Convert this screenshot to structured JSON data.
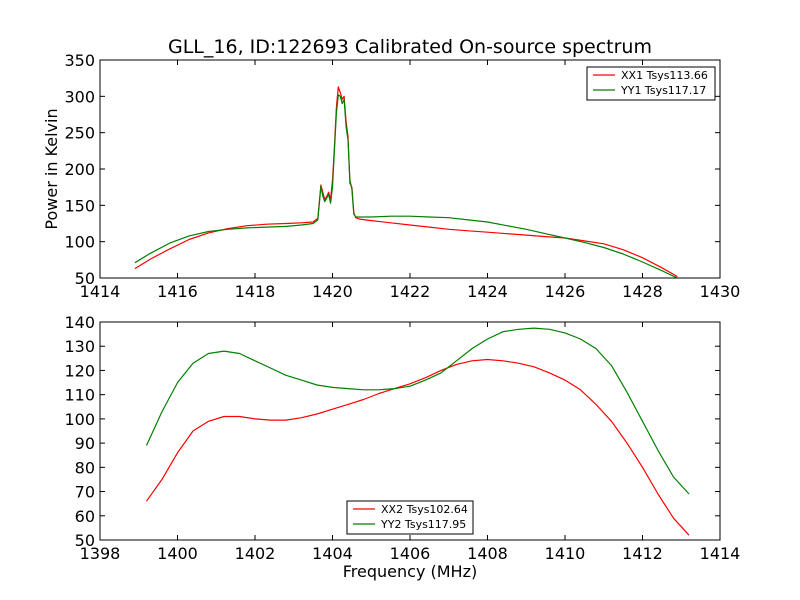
{
  "title": "GLL_16, ID:122693 Calibrated On-source spectrum",
  "chart_data": [
    {
      "type": "line",
      "ylabel": "Power in Kelvin",
      "xlabel": "",
      "xlim": [
        1414,
        1430
      ],
      "ylim": [
        50,
        350
      ],
      "xticks": [
        1414,
        1416,
        1418,
        1420,
        1422,
        1424,
        1426,
        1428,
        1430
      ],
      "yticks": [
        50,
        100,
        150,
        200,
        250,
        300,
        350
      ],
      "grid": false,
      "legend_position": "top-right",
      "series": [
        {
          "name": "XX1 Tsys113.66",
          "color": "#ff0000",
          "x": [
            1414.9,
            1415.3,
            1415.8,
            1416.3,
            1416.8,
            1417.3,
            1417.8,
            1418.3,
            1418.8,
            1419.2,
            1419.5,
            1419.62,
            1419.7,
            1419.75,
            1419.8,
            1419.85,
            1419.9,
            1419.95,
            1420.0,
            1420.05,
            1420.1,
            1420.15,
            1420.2,
            1420.25,
            1420.3,
            1420.35,
            1420.4,
            1420.45,
            1420.5,
            1420.55,
            1420.6,
            1420.7,
            1421.0,
            1421.5,
            1422.0,
            1422.5,
            1423.0,
            1423.5,
            1424.0,
            1424.5,
            1425.0,
            1425.5,
            1426.0,
            1426.5,
            1427.0,
            1427.5,
            1428.0,
            1428.5,
            1428.9
          ],
          "y": [
            63,
            76,
            90,
            103,
            112,
            118,
            122,
            124,
            125,
            126,
            127,
            132,
            178,
            168,
            158,
            162,
            168,
            158,
            185,
            230,
            285,
            313,
            305,
            296,
            300,
            265,
            245,
            180,
            175,
            140,
            133,
            131,
            129,
            126,
            123,
            120,
            117,
            115,
            113,
            111,
            109,
            107,
            105,
            101,
            97,
            89,
            78,
            64,
            52
          ]
        },
        {
          "name": "YY1 Tsys117.17",
          "color": "#008000",
          "x": [
            1414.9,
            1415.3,
            1415.8,
            1416.3,
            1416.8,
            1417.3,
            1417.8,
            1418.3,
            1418.8,
            1419.2,
            1419.5,
            1419.62,
            1419.7,
            1419.75,
            1419.8,
            1419.85,
            1419.9,
            1419.95,
            1420.0,
            1420.05,
            1420.1,
            1420.15,
            1420.2,
            1420.25,
            1420.3,
            1420.35,
            1420.4,
            1420.45,
            1420.5,
            1420.55,
            1420.6,
            1420.7,
            1421.0,
            1421.5,
            1422.0,
            1422.5,
            1423.0,
            1423.5,
            1424.0,
            1424.5,
            1425.0,
            1425.5,
            1426.0,
            1426.5,
            1427.0,
            1427.5,
            1428.0,
            1428.5,
            1428.9
          ],
          "y": [
            71,
            84,
            98,
            108,
            114,
            117,
            119,
            120,
            121,
            123,
            125,
            130,
            176,
            163,
            155,
            160,
            165,
            153,
            175,
            225,
            277,
            302,
            300,
            290,
            296,
            258,
            240,
            185,
            172,
            138,
            134,
            134,
            134,
            135,
            135,
            134,
            133,
            130,
            127,
            122,
            117,
            111,
            105,
            99,
            92,
            83,
            72,
            60,
            50
          ]
        }
      ]
    },
    {
      "type": "line",
      "ylabel": "",
      "xlabel": "Frequency (MHz)",
      "xlim": [
        1398,
        1414
      ],
      "ylim": [
        50,
        140
      ],
      "xticks": [
        1398,
        1400,
        1402,
        1404,
        1406,
        1408,
        1410,
        1412,
        1414
      ],
      "yticks": [
        50,
        60,
        70,
        80,
        90,
        100,
        110,
        120,
        130,
        140
      ],
      "grid": false,
      "legend_position": "lower-center",
      "series": [
        {
          "name": "XX2 Tsys102.64",
          "color": "#ff0000",
          "x": [
            1399.2,
            1399.6,
            1400.0,
            1400.4,
            1400.8,
            1401.2,
            1401.6,
            1402.0,
            1402.4,
            1402.8,
            1403.2,
            1403.6,
            1404.0,
            1404.4,
            1404.8,
            1405.2,
            1405.6,
            1406.0,
            1406.4,
            1406.8,
            1407.2,
            1407.6,
            1408.0,
            1408.4,
            1408.8,
            1409.2,
            1409.6,
            1410.0,
            1410.4,
            1410.8,
            1411.2,
            1411.6,
            1412.0,
            1412.4,
            1412.8,
            1413.2
          ],
          "y": [
            66,
            75,
            86,
            95,
            99,
            101,
            101,
            100,
            99.5,
            99.5,
            100.5,
            102,
            104,
            106,
            108,
            110.5,
            112.5,
            114.5,
            117,
            120,
            122.5,
            124,
            124.5,
            124,
            123,
            121.5,
            119,
            116,
            112,
            106,
            99,
            90,
            80,
            69,
            59,
            52
          ]
        },
        {
          "name": "YY2 Tsys117.95",
          "color": "#008000",
          "x": [
            1399.2,
            1399.6,
            1400.0,
            1400.4,
            1400.8,
            1401.2,
            1401.6,
            1402.0,
            1402.4,
            1402.8,
            1403.2,
            1403.6,
            1404.0,
            1404.4,
            1404.8,
            1405.2,
            1405.6,
            1406.0,
            1406.4,
            1406.8,
            1407.2,
            1407.6,
            1408.0,
            1408.4,
            1408.8,
            1409.2,
            1409.6,
            1410.0,
            1410.4,
            1410.8,
            1411.2,
            1411.6,
            1412.0,
            1412.4,
            1412.8,
            1413.2
          ],
          "y": [
            89,
            103,
            115,
            123,
            127,
            128,
            127,
            124,
            121,
            118,
            116,
            114,
            113,
            112.5,
            112,
            112,
            112.5,
            113.5,
            116,
            119,
            124,
            129,
            133,
            136,
            137,
            137.5,
            137,
            135.5,
            133,
            129,
            122,
            111,
            99,
            87,
            76,
            69
          ]
        }
      ]
    }
  ]
}
